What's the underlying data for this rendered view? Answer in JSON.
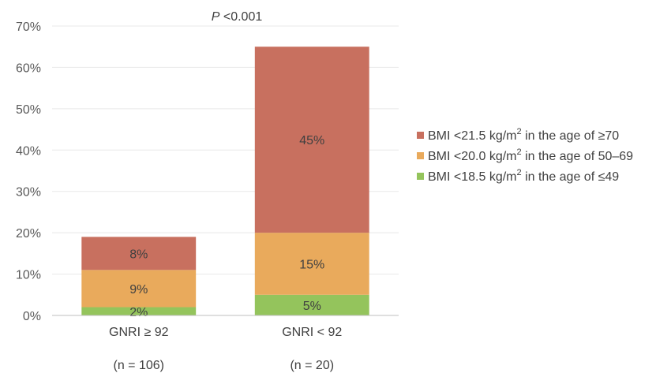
{
  "chart_data": {
    "type": "bar",
    "stacked": true,
    "categories": [
      "GNRI ≥ 92",
      "GNRI < 92"
    ],
    "category_sublabels": [
      "(n = 106)",
      "(n = 20)"
    ],
    "series": [
      {
        "name": "BMI <18.5 kg/m2 in the age of ≤49",
        "legend_parts": {
          "before": "BMI <18.5 kg/m",
          "sup": "2",
          "after": " in the age of ≤49"
        },
        "values": [
          2,
          5
        ],
        "labels": [
          "2%",
          "5%"
        ],
        "color": "#94c45c"
      },
      {
        "name": "BMI <20.0 kg/m2 in the age of 50–69",
        "legend_parts": {
          "before": "BMI <20.0  kg/m",
          "sup": "2",
          "after": " in the age of 50–69"
        },
        "values": [
          9,
          15
        ],
        "labels": [
          "9%",
          "15%"
        ],
        "color": "#e9aa5c"
      },
      {
        "name": "BMI <21.5 kg/m2 in the age of ≥70",
        "legend_parts": {
          "before": "BMI <21.5  kg/m",
          "sup": "2",
          "after": " in the age of ≥70"
        },
        "values": [
          8,
          45
        ],
        "labels": [
          "8%",
          "45%"
        ],
        "color": "#c8705f"
      }
    ],
    "legend_order": [
      2,
      1,
      0
    ],
    "legend_position": "right",
    "ylim": [
      0,
      70
    ],
    "yticks": [
      0,
      10,
      20,
      30,
      40,
      50,
      60,
      70
    ],
    "ytick_labels": [
      "0%",
      "10%",
      "20%",
      "30%",
      "40%",
      "50%",
      "60%",
      "70%"
    ],
    "grid": true,
    "annotation": {
      "italic": "P",
      "rest": " <0.001"
    }
  }
}
